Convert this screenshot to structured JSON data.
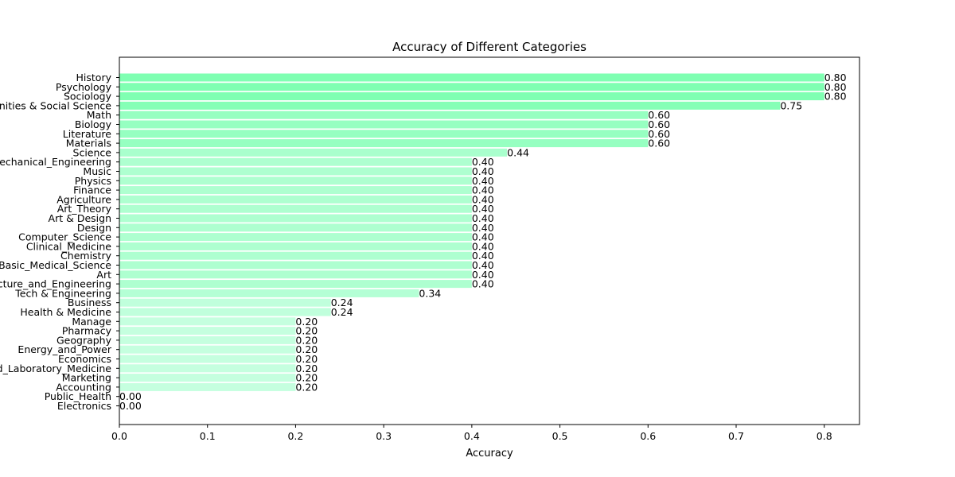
{
  "chart_data": {
    "type": "bar",
    "orientation": "horizontal",
    "title": "Accuracy of Different Categories",
    "xlabel": "Accuracy",
    "ylabel": "",
    "xlim": [
      0,
      0.84
    ],
    "xticks": [
      "0.0",
      "0.1",
      "0.2",
      "0.3",
      "0.4",
      "0.5",
      "0.6",
      "0.7",
      "0.8"
    ],
    "categories": [
      "History",
      "Psychology",
      "Sociology",
      "Humanities & Social Science",
      "Math",
      "Biology",
      "Literature",
      "Materials",
      "Science",
      "Mechanical_Engineering",
      "Music",
      "Physics",
      "Finance",
      "Agriculture",
      "Art_Theory",
      "Art & Design",
      "Design",
      "Computer_Science",
      "Clinical_Medicine",
      "Chemistry",
      "Basic_Medical_Science",
      "Art",
      "Architecture_and_Engineering",
      "Tech & Engineering",
      "Business",
      "Health & Medicine",
      "Manage",
      "Pharmacy",
      "Geography",
      "Energy_and_Power",
      "Economics",
      "Diagnostics_and_Laboratory_Medicine",
      "Marketing",
      "Accounting",
      "Public_Health",
      "Electronics"
    ],
    "values": [
      0.8,
      0.8,
      0.8,
      0.75,
      0.6,
      0.6,
      0.6,
      0.6,
      0.44,
      0.4,
      0.4,
      0.4,
      0.4,
      0.4,
      0.4,
      0.4,
      0.4,
      0.4,
      0.4,
      0.4,
      0.4,
      0.4,
      0.4,
      0.34,
      0.24,
      0.24,
      0.2,
      0.2,
      0.2,
      0.2,
      0.2,
      0.2,
      0.2,
      0.2,
      0.0,
      0.0
    ],
    "value_labels": [
      "0.80",
      "0.80",
      "0.80",
      "0.75",
      "0.60",
      "0.60",
      "0.60",
      "0.60",
      "0.44",
      "0.40",
      "0.40",
      "0.40",
      "0.40",
      "0.40",
      "0.40",
      "0.40",
      "0.40",
      "0.40",
      "0.40",
      "0.40",
      "0.40",
      "0.40",
      "0.40",
      "0.34",
      "0.24",
      "0.24",
      "0.20",
      "0.20",
      "0.20",
      "0.20",
      "0.20",
      "0.20",
      "0.20",
      "0.20",
      "0.00",
      "0.00"
    ],
    "bar_color_scale": {
      "high": "#7fffb2",
      "low": "#dcffee"
    },
    "grid": false,
    "legend": "none"
  }
}
